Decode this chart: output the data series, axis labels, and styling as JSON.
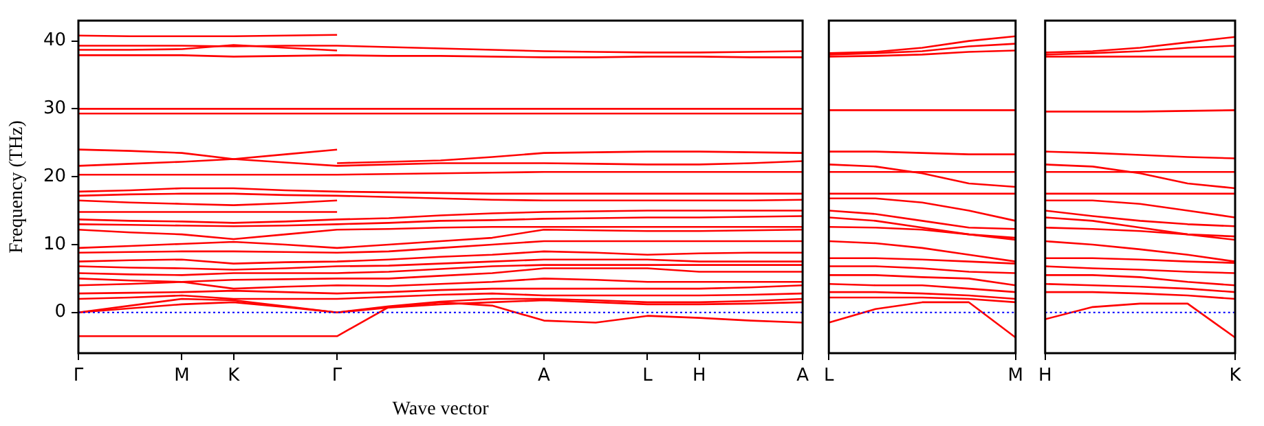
{
  "chart_data": [
    {
      "type": "line",
      "ylabel": "Frequency (THz)",
      "xlabel": "Wave vector",
      "ylim": [
        -6,
        43
      ],
      "yticks": [
        0,
        10,
        20,
        30,
        40
      ],
      "categories": [
        "Γ",
        null,
        "M",
        "K",
        null,
        "Γ",
        null,
        null,
        null,
        "A",
        null,
        "L",
        "H",
        null,
        "A"
      ],
      "grid": false,
      "marker": "none",
      "ref_lines": [
        {
          "axis": "y",
          "value": 0,
          "color": "#0000ff",
          "line_style": "dotted"
        }
      ],
      "series": [
        {
          "color": "#ff0000",
          "values": [
            40.8,
            40.7,
            40.7,
            40.7,
            40.8,
            40.9,
            null,
            null,
            null,
            null,
            null,
            null,
            null,
            null,
            null
          ]
        },
        {
          "color": "#ff0000",
          "values": [
            39.3,
            39.3,
            39.3,
            39.2,
            39.3,
            39.3,
            39.1,
            38.9,
            38.7,
            38.5,
            38.4,
            38.3,
            38.3,
            38.4,
            38.5
          ]
        },
        {
          "color": "#ff0000",
          "values": [
            38.7,
            38.7,
            38.8,
            39.4,
            39.0,
            38.6,
            null,
            null,
            null,
            null,
            null,
            null,
            null,
            null,
            null
          ]
        },
        {
          "color": "#ff0000",
          "values": [
            37.9,
            37.9,
            37.9,
            37.7,
            37.8,
            37.9,
            37.8,
            37.8,
            37.7,
            37.6,
            37.6,
            37.7,
            37.7,
            37.6,
            37.6
          ]
        },
        {
          "color": "#ff0000",
          "values": [
            30.0,
            30.0,
            30.0,
            30.0,
            30.0,
            30.0,
            30.0,
            30.0,
            30.0,
            30.0,
            30.0,
            30.0,
            30.0,
            30.0,
            30.0
          ]
        },
        {
          "color": "#ff0000",
          "values": [
            29.3,
            29.3,
            29.3,
            29.3,
            29.3,
            29.3,
            29.3,
            29.3,
            29.3,
            29.3,
            29.3,
            29.3,
            29.3,
            29.3,
            29.3
          ]
        },
        {
          "color": "#ff0000",
          "values": [
            24.0,
            23.8,
            23.5,
            22.6,
            23.3,
            24.0,
            null,
            null,
            null,
            null,
            null,
            null,
            null,
            null,
            null
          ]
        },
        {
          "color": "#ff0000",
          "values": [
            21.6,
            21.9,
            22.2,
            22.6,
            22.1,
            21.6,
            21.8,
            22.0,
            22.0,
            22.0,
            21.9,
            21.8,
            21.8,
            22.0,
            22.3
          ]
        },
        {
          "color": "#ff0000",
          "values": [
            null,
            null,
            null,
            null,
            null,
            22.0,
            22.2,
            22.4,
            22.9,
            23.5,
            23.6,
            23.7,
            23.7,
            23.6,
            23.5
          ]
        },
        {
          "color": "#ff0000",
          "values": [
            20.3,
            20.3,
            20.3,
            20.3,
            20.3,
            20.3,
            20.4,
            20.5,
            20.6,
            20.7,
            20.7,
            20.7,
            20.7,
            20.7,
            20.7
          ]
        },
        {
          "color": "#ff0000",
          "values": [
            17.8,
            18.0,
            18.3,
            18.3,
            18.0,
            17.8,
            17.7,
            17.6,
            17.5,
            17.5,
            17.5,
            17.5,
            17.5,
            17.5,
            17.5
          ]
        },
        {
          "color": "#ff0000",
          "values": [
            17.2,
            17.4,
            17.5,
            17.5,
            17.3,
            17.2,
            17.0,
            16.8,
            16.6,
            16.5,
            16.5,
            16.5,
            16.5,
            16.5,
            16.6
          ]
        },
        {
          "color": "#ff0000",
          "values": [
            16.5,
            16.2,
            16.0,
            15.8,
            16.1,
            16.5,
            null,
            null,
            null,
            null,
            null,
            null,
            null,
            null,
            null
          ]
        },
        {
          "color": "#ff0000",
          "values": [
            14.8,
            14.8,
            14.8,
            14.8,
            14.8,
            14.8,
            null,
            null,
            null,
            null,
            null,
            null,
            null,
            null,
            null
          ]
        },
        {
          "color": "#ff0000",
          "values": [
            13.7,
            13.5,
            13.4,
            13.2,
            13.4,
            13.7,
            13.9,
            14.3,
            14.6,
            14.8,
            14.9,
            15.0,
            15.0,
            15.0,
            15.0
          ]
        },
        {
          "color": "#ff0000",
          "values": [
            13.0,
            12.9,
            12.8,
            12.7,
            12.8,
            13.0,
            13.2,
            13.5,
            13.6,
            13.8,
            13.9,
            14.0,
            14.0,
            14.1,
            14.2
          ]
        },
        {
          "color": "#ff0000",
          "values": [
            12.2,
            11.8,
            11.5,
            10.8,
            11.5,
            12.2,
            12.3,
            12.5,
            12.6,
            12.6,
            12.6,
            12.6,
            12.6,
            12.6,
            12.6
          ]
        },
        {
          "color": "#ff0000",
          "values": [
            9.5,
            9.8,
            10.1,
            10.4,
            10.0,
            9.5,
            10.0,
            10.5,
            11.0,
            12.2,
            12.1,
            12.0,
            12.0,
            12.1,
            12.2
          ]
        },
        {
          "color": "#ff0000",
          "values": [
            8.8,
            8.9,
            9.0,
            9.0,
            8.9,
            8.8,
            9.0,
            9.5,
            10.0,
            10.5,
            10.5,
            10.5,
            10.5,
            10.5,
            10.5
          ]
        },
        {
          "color": "#ff0000",
          "values": [
            7.5,
            7.7,
            7.8,
            7.2,
            7.4,
            7.5,
            7.8,
            8.2,
            8.5,
            9.0,
            8.8,
            8.5,
            8.7,
            8.8,
            8.8
          ]
        },
        {
          "color": "#ff0000",
          "values": [
            6.8,
            6.6,
            6.5,
            6.3,
            6.5,
            6.8,
            6.9,
            7.2,
            7.5,
            7.8,
            7.8,
            7.8,
            7.5,
            7.5,
            7.5
          ]
        },
        {
          "color": "#ff0000",
          "values": [
            5.8,
            5.6,
            5.5,
            5.8,
            5.8,
            5.8,
            6.0,
            6.4,
            6.8,
            7.0,
            7.0,
            7.0,
            7.0,
            7.0,
            7.0
          ]
        },
        {
          "color": "#ff0000",
          "values": [
            5.0,
            4.7,
            4.5,
            4.8,
            4.9,
            5.0,
            5.0,
            5.4,
            5.8,
            6.5,
            6.5,
            6.5,
            6.0,
            6.0,
            6.0
          ]
        },
        {
          "color": "#ff0000",
          "values": [
            4.0,
            4.2,
            4.5,
            3.5,
            3.8,
            4.0,
            3.9,
            4.2,
            4.5,
            5.0,
            4.8,
            4.5,
            4.5,
            4.5,
            4.5
          ]
        },
        {
          "color": "#ff0000",
          "values": [
            2.8,
            2.9,
            3.0,
            3.2,
            3.0,
            2.8,
            3.0,
            3.3,
            3.5,
            3.5,
            3.5,
            3.5,
            3.5,
            3.7,
            4.0
          ]
        },
        {
          "color": "#ff0000",
          "values": [
            2.0,
            2.2,
            2.5,
            2.0,
            2.0,
            2.0,
            2.3,
            2.6,
            2.8,
            2.5,
            2.5,
            2.5,
            2.5,
            2.6,
            2.8
          ]
        },
        {
          "color": "#ff0000",
          "values": [
            0,
            1.0,
            2.0,
            1.8,
            0.9,
            0,
            0.9,
            1.6,
            2.0,
            2.0,
            1.8,
            1.5,
            1.5,
            1.7,
            2.0
          ]
        },
        {
          "color": "#ff0000",
          "values": [
            0,
            0.6,
            1.2,
            1.5,
            0.8,
            0,
            0.7,
            1.2,
            1.5,
            1.8,
            1.5,
            1.2,
            1.2,
            1.3,
            1.5
          ]
        },
        {
          "color": "#ff0000",
          "values": [
            -3.5,
            -3.5,
            -3.5,
            -3.5,
            -3.5,
            -3.5,
            0.8,
            1.5,
            1.0,
            -1.2,
            -1.5,
            -0.5,
            -0.8,
            -1.2,
            -1.5
          ]
        }
      ]
    },
    {
      "type": "line",
      "ylim": [
        -6,
        43
      ],
      "yticks": [
        0,
        10,
        20,
        30,
        40
      ],
      "tick_labels": "x",
      "categories": [
        "L",
        null,
        null,
        null,
        "M"
      ],
      "grid": false,
      "marker": "none",
      "ref_lines": [
        {
          "axis": "y",
          "value": 0,
          "color": "#0000ff",
          "line_style": "dotted"
        }
      ],
      "series": [
        {
          "color": "#ff0000",
          "values": [
            38.2,
            38.4,
            39.0,
            40.0,
            40.7
          ]
        },
        {
          "color": "#ff0000",
          "values": [
            38.0,
            38.2,
            38.5,
            39.2,
            39.6
          ]
        },
        {
          "color": "#ff0000",
          "values": [
            37.7,
            37.8,
            38.0,
            38.4,
            38.6
          ]
        },
        {
          "color": "#ff0000",
          "values": [
            29.8,
            29.8,
            29.8,
            29.8,
            29.8
          ]
        },
        {
          "color": "#ff0000",
          "values": [
            23.7,
            23.7,
            23.5,
            23.3,
            23.3
          ]
        },
        {
          "color": "#ff0000",
          "values": [
            21.8,
            21.5,
            20.5,
            19.0,
            18.5
          ]
        },
        {
          "color": "#ff0000",
          "values": [
            20.7,
            20.7,
            20.7,
            20.7,
            20.7
          ]
        },
        {
          "color": "#ff0000",
          "values": [
            17.5,
            17.5,
            17.5,
            17.5,
            17.5
          ]
        },
        {
          "color": "#ff0000",
          "values": [
            16.8,
            16.8,
            16.2,
            15.0,
            13.5
          ]
        },
        {
          "color": "#ff0000",
          "values": [
            15.0,
            14.5,
            13.5,
            12.5,
            12.3
          ]
        },
        {
          "color": "#ff0000",
          "values": [
            14.0,
            13.5,
            12.5,
            11.5,
            11.0
          ]
        },
        {
          "color": "#ff0000",
          "values": [
            12.6,
            12.5,
            12.2,
            11.5,
            10.7
          ]
        },
        {
          "color": "#ff0000",
          "values": [
            10.5,
            10.2,
            9.5,
            8.5,
            7.5
          ]
        },
        {
          "color": "#ff0000",
          "values": [
            8.0,
            8.0,
            7.8,
            7.5,
            7.2
          ]
        },
        {
          "color": "#ff0000",
          "values": [
            6.8,
            6.8,
            6.5,
            6.0,
            5.8
          ]
        },
        {
          "color": "#ff0000",
          "values": [
            5.5,
            5.5,
            5.2,
            5.0,
            4.0
          ]
        },
        {
          "color": "#ff0000",
          "values": [
            4.2,
            4.0,
            4.0,
            3.5,
            3.0
          ]
        },
        {
          "color": "#ff0000",
          "values": [
            3.0,
            3.0,
            2.8,
            2.5,
            2.0
          ]
        },
        {
          "color": "#ff0000",
          "values": [
            2.2,
            2.2,
            2.2,
            2.0,
            1.5
          ]
        },
        {
          "color": "#ff0000",
          "values": [
            -1.5,
            0.5,
            1.5,
            1.5,
            -3.7
          ]
        }
      ]
    },
    {
      "type": "line",
      "ylim": [
        -6,
        43
      ],
      "yticks": [
        0,
        10,
        20,
        30,
        40
      ],
      "tick_labels": "x",
      "categories": [
        "H",
        null,
        null,
        null,
        "K"
      ],
      "grid": false,
      "marker": "none",
      "ref_lines": [
        {
          "axis": "y",
          "value": 0,
          "color": "#0000ff",
          "line_style": "dotted"
        }
      ],
      "series": [
        {
          "color": "#ff0000",
          "values": [
            38.3,
            38.5,
            39.0,
            39.8,
            40.6
          ]
        },
        {
          "color": "#ff0000",
          "values": [
            38.0,
            38.2,
            38.5,
            39.0,
            39.3
          ]
        },
        {
          "color": "#ff0000",
          "values": [
            37.7,
            37.7,
            37.7,
            37.7,
            37.7
          ]
        },
        {
          "color": "#ff0000",
          "values": [
            29.6,
            29.6,
            29.6,
            29.7,
            29.8
          ]
        },
        {
          "color": "#ff0000",
          "values": [
            23.7,
            23.5,
            23.2,
            22.9,
            22.7
          ]
        },
        {
          "color": "#ff0000",
          "values": [
            21.8,
            21.5,
            20.5,
            19.0,
            18.3
          ]
        },
        {
          "color": "#ff0000",
          "values": [
            20.7,
            20.7,
            20.7,
            20.7,
            20.7
          ]
        },
        {
          "color": "#ff0000",
          "values": [
            17.5,
            17.5,
            17.5,
            17.5,
            17.5
          ]
        },
        {
          "color": "#ff0000",
          "values": [
            16.5,
            16.5,
            16.0,
            15.0,
            14.0
          ]
        },
        {
          "color": "#ff0000",
          "values": [
            15.0,
            14.2,
            13.5,
            13.0,
            12.7
          ]
        },
        {
          "color": "#ff0000",
          "values": [
            14.0,
            13.5,
            12.5,
            11.5,
            10.7
          ]
        },
        {
          "color": "#ff0000",
          "values": [
            12.5,
            12.3,
            12.0,
            11.5,
            11.2
          ]
        },
        {
          "color": "#ff0000",
          "values": [
            10.5,
            10.0,
            9.3,
            8.5,
            7.5
          ]
        },
        {
          "color": "#ff0000",
          "values": [
            8.0,
            8.0,
            7.8,
            7.5,
            7.3
          ]
        },
        {
          "color": "#ff0000",
          "values": [
            6.8,
            6.5,
            6.3,
            6.0,
            5.8
          ]
        },
        {
          "color": "#ff0000",
          "values": [
            5.5,
            5.5,
            5.2,
            4.5,
            4.0
          ]
        },
        {
          "color": "#ff0000",
          "values": [
            4.2,
            4.0,
            3.8,
            3.5,
            3.0
          ]
        },
        {
          "color": "#ff0000",
          "values": [
            3.0,
            3.0,
            2.8,
            2.5,
            2.0
          ]
        },
        {
          "color": "#ff0000",
          "values": [
            -1.0,
            0.8,
            1.3,
            1.3,
            -3.7
          ]
        }
      ]
    }
  ]
}
